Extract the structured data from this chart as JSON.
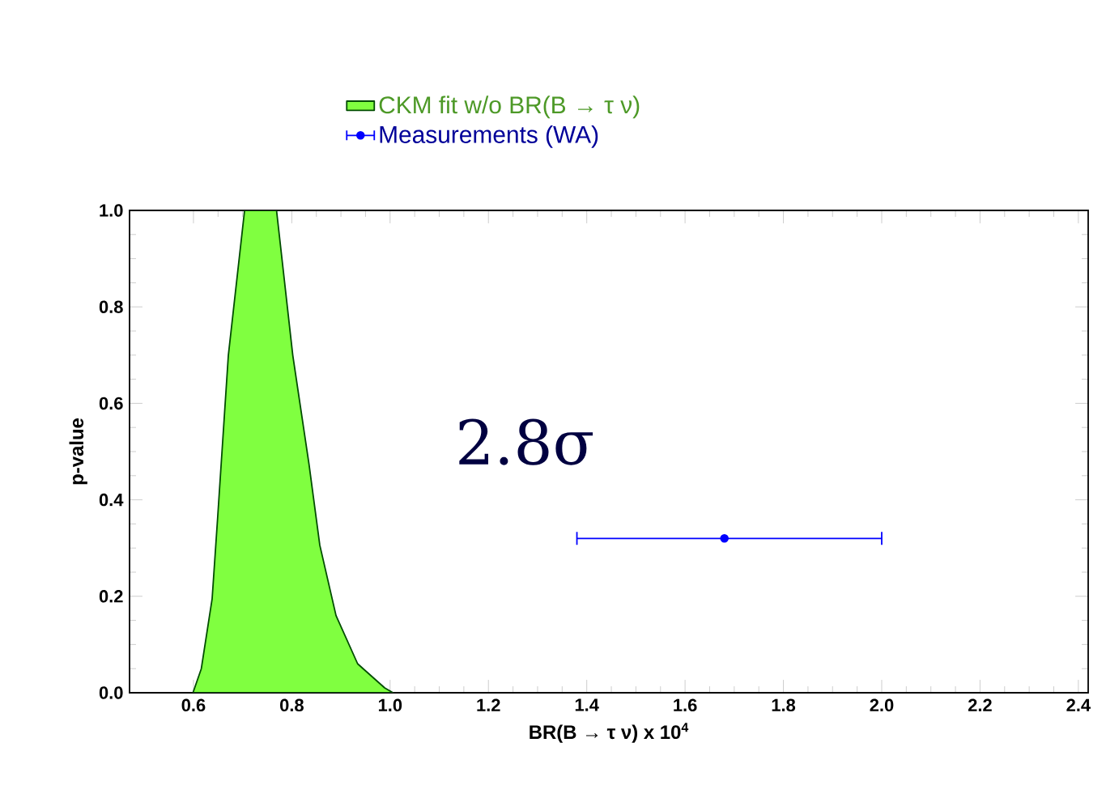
{
  "chart_data": {
    "type": "area",
    "xlabel": "**BR(B → τ ν) x 10$^{4}$**",
    "ylabel": "**p-value**",
    "xlim": [
      0.47,
      2.42
    ],
    "ylim": [
      0,
      1
    ],
    "xticks": [
      0.6,
      0.8,
      {
        "value": 1.0,
        "label": "1.0"
      },
      1.2,
      1.4,
      1.6,
      1.8,
      {
        "value": 2.0,
        "label": "2.0"
      },
      2.2,
      2.4
    ],
    "yticks": [
      {
        "value": 0,
        "label": "0.0"
      },
      0.2,
      0.4,
      0.6,
      0.8,
      {
        "value": 1.0,
        "label": "1.0"
      }
    ],
    "legend": "top",
    "annotations": [
      "2.8σ"
    ],
    "series": [
      {
        "name": "CKM fit w/o BR(B → τ ν)",
        "color": "#80ff40",
        "x": [
          0.599,
          0.616,
          0.638,
          0.649,
          0.671,
          0.704,
          0.769,
          0.802,
          0.835,
          0.857,
          0.89,
          0.934,
          0.989,
          1.006
        ],
        "values": [
          0,
          0.05,
          0.195,
          0.36,
          0.7,
          1,
          1,
          0.7,
          0.474,
          0.306,
          0.16,
          0.06,
          0.01,
          0
        ]
      },
      {
        "name": "Measurements (WA)",
        "type": "scatter",
        "color": "#0000ff",
        "marker": "circle",
        "x": [
          1.68
        ],
        "values": [
          0.32
        ],
        "xerrors": [
          [
            1.38,
            2.0
          ]
        ]
      }
    ]
  }
}
